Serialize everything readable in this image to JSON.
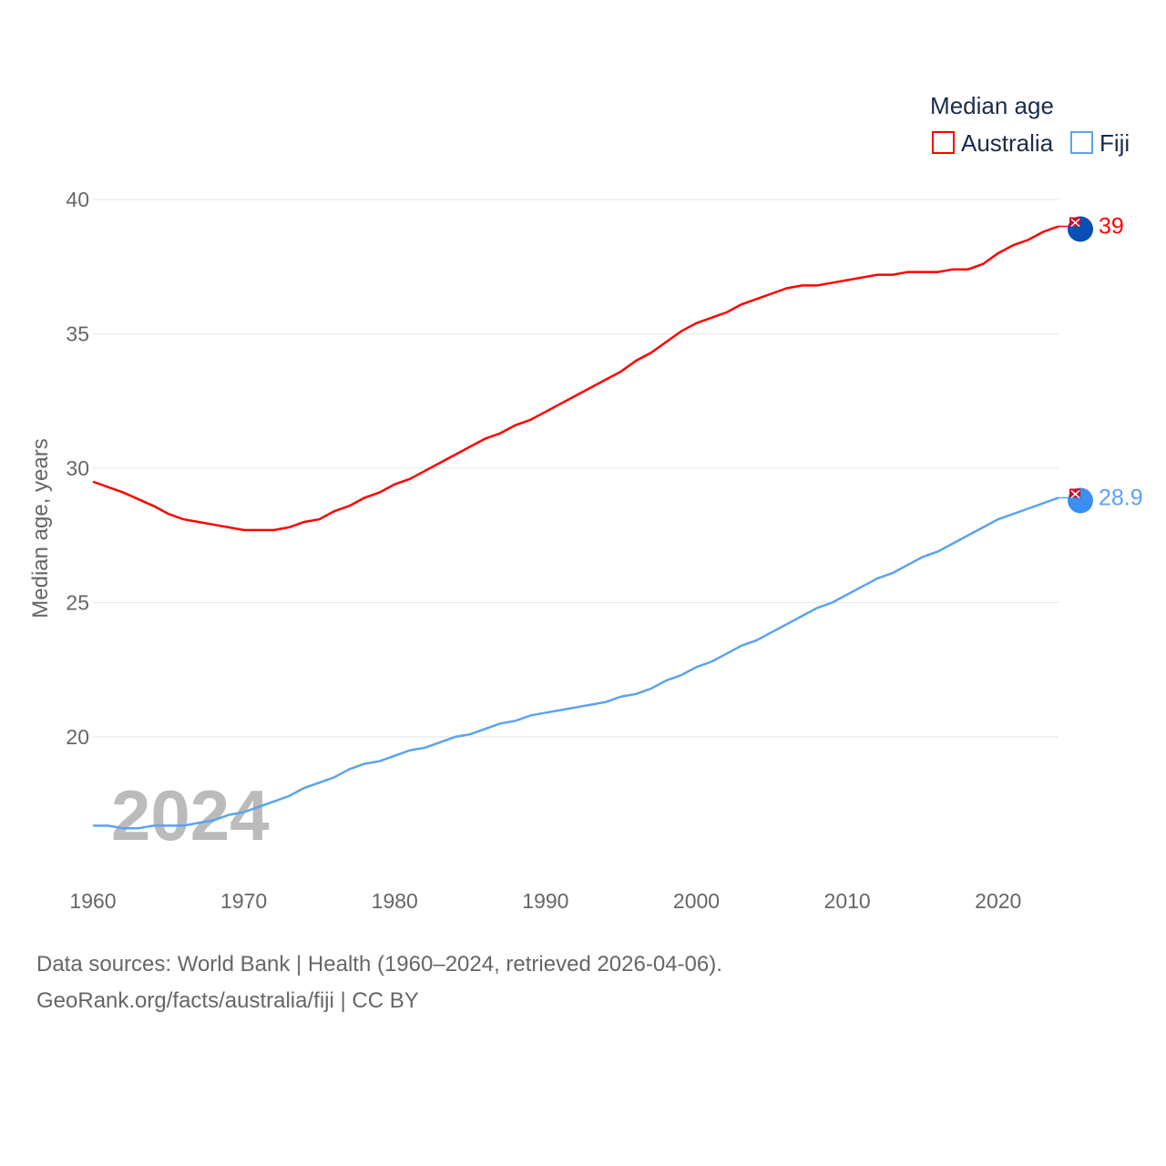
{
  "chart_data": {
    "type": "line",
    "title": "Median age",
    "xlabel": "",
    "ylabel": "Median age, years",
    "xlim": [
      1960,
      2024
    ],
    "ylim": [
      15.5,
      41
    ],
    "yticks": [
      20,
      25,
      30,
      35,
      40
    ],
    "xticks": [
      1960,
      1970,
      1980,
      1990,
      2000,
      2010,
      2020
    ],
    "grid": true,
    "legend_position": "top-right",
    "year_watermark": "2024",
    "x": [
      1960,
      1961,
      1962,
      1963,
      1964,
      1965,
      1966,
      1967,
      1968,
      1969,
      1970,
      1971,
      1972,
      1973,
      1974,
      1975,
      1976,
      1977,
      1978,
      1979,
      1980,
      1981,
      1982,
      1983,
      1984,
      1985,
      1986,
      1987,
      1988,
      1989,
      1990,
      1991,
      1992,
      1993,
      1994,
      1995,
      1996,
      1997,
      1998,
      1999,
      2000,
      2001,
      2002,
      2003,
      2004,
      2005,
      2006,
      2007,
      2008,
      2009,
      2010,
      2011,
      2012,
      2013,
      2014,
      2015,
      2016,
      2017,
      2018,
      2019,
      2020,
      2021,
      2022,
      2023,
      2024
    ],
    "series": [
      {
        "name": "Australia",
        "color": "#ff0000",
        "end_label": "39",
        "values": [
          29.5,
          29.3,
          29.1,
          28.85,
          28.6,
          28.3,
          28.1,
          28.0,
          27.9,
          27.8,
          27.7,
          27.7,
          27.7,
          27.8,
          28.0,
          28.1,
          28.4,
          28.6,
          28.9,
          29.1,
          29.4,
          29.6,
          29.9,
          30.2,
          30.5,
          30.8,
          31.1,
          31.3,
          31.6,
          31.8,
          32.1,
          32.4,
          32.7,
          33.0,
          33.3,
          33.6,
          34.0,
          34.3,
          34.7,
          35.1,
          35.4,
          35.6,
          35.8,
          36.1,
          36.3,
          36.5,
          36.7,
          36.8,
          36.8,
          36.9,
          37.0,
          37.1,
          37.2,
          37.2,
          37.3,
          37.3,
          37.3,
          37.4,
          37.4,
          37.6,
          38.0,
          38.3,
          38.5,
          38.8,
          39.0
        ]
      },
      {
        "name": "Fiji",
        "color": "#5ba3ee",
        "end_label": "28.9",
        "values": [
          16.7,
          16.7,
          16.6,
          16.6,
          16.7,
          16.7,
          16.7,
          16.8,
          16.9,
          17.1,
          17.2,
          17.4,
          17.6,
          17.8,
          18.1,
          18.3,
          18.5,
          18.8,
          19.0,
          19.1,
          19.3,
          19.5,
          19.6,
          19.8,
          20.0,
          20.1,
          20.3,
          20.5,
          20.6,
          20.8,
          20.9,
          21.0,
          21.1,
          21.2,
          21.3,
          21.5,
          21.6,
          21.8,
          22.1,
          22.3,
          22.6,
          22.8,
          23.1,
          23.4,
          23.6,
          23.9,
          24.2,
          24.5,
          24.8,
          25.0,
          25.3,
          25.6,
          25.9,
          26.1,
          26.4,
          26.7,
          26.9,
          27.2,
          27.5,
          27.8,
          28.1,
          28.3,
          28.5,
          28.7,
          28.9
        ]
      }
    ]
  },
  "footer": {
    "line1": "Data sources: World Bank | Health (1960–2024, retrieved 2026-04-06).",
    "line2": "GeoRank.org/facts/australia/fiji | CC BY"
  }
}
